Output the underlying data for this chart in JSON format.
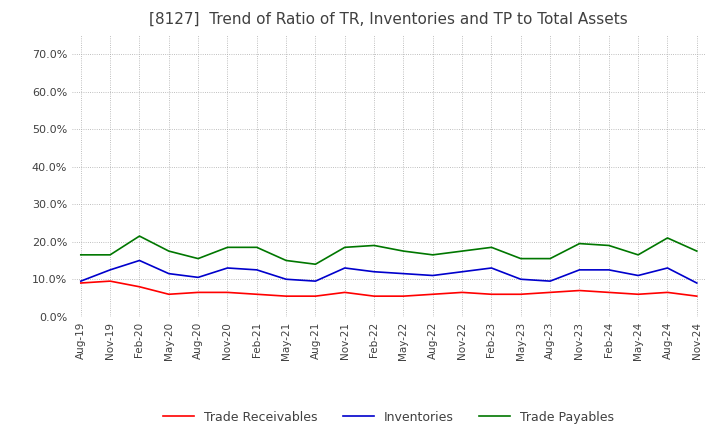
{
  "title": "[8127]  Trend of Ratio of TR, Inventories and TP to Total Assets",
  "ylim": [
    0.0,
    0.75
  ],
  "yticks": [
    0.0,
    0.1,
    0.2,
    0.3,
    0.4,
    0.5,
    0.6,
    0.7
  ],
  "x_labels": [
    "Aug-19",
    "Nov-19",
    "Feb-20",
    "May-20",
    "Aug-20",
    "Nov-20",
    "Feb-21",
    "May-21",
    "Aug-21",
    "Nov-21",
    "Feb-22",
    "May-22",
    "Aug-22",
    "Nov-22",
    "Feb-23",
    "May-23",
    "Aug-23",
    "Nov-23",
    "Feb-24",
    "May-24",
    "Aug-24",
    "Nov-24"
  ],
  "trade_receivables": [
    0.09,
    0.095,
    0.08,
    0.06,
    0.065,
    0.065,
    0.06,
    0.055,
    0.055,
    0.065,
    0.055,
    0.055,
    0.06,
    0.065,
    0.06,
    0.06,
    0.065,
    0.07,
    0.065,
    0.06,
    0.065,
    0.055
  ],
  "inventories": [
    0.095,
    0.125,
    0.15,
    0.115,
    0.105,
    0.13,
    0.125,
    0.1,
    0.095,
    0.13,
    0.12,
    0.115,
    0.11,
    0.12,
    0.13,
    0.1,
    0.095,
    0.125,
    0.125,
    0.11,
    0.13,
    0.09
  ],
  "trade_payables": [
    0.165,
    0.165,
    0.215,
    0.175,
    0.155,
    0.185,
    0.185,
    0.15,
    0.14,
    0.185,
    0.19,
    0.175,
    0.165,
    0.175,
    0.185,
    0.155,
    0.155,
    0.195,
    0.19,
    0.165,
    0.21,
    0.175
  ],
  "tr_color": "#ff0000",
  "inv_color": "#0000cc",
  "tp_color": "#007700",
  "background_color": "#ffffff",
  "grid_color": "#aaaaaa",
  "title_color": "#404040",
  "legend_labels": [
    "Trade Receivables",
    "Inventories",
    "Trade Payables"
  ]
}
